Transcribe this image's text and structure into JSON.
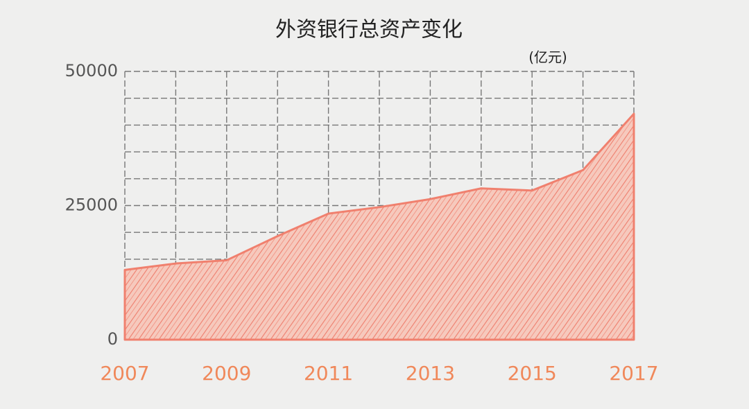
{
  "chart_data": {
    "type": "area",
    "title": "外资银行总资产变化",
    "unit": "(亿元)",
    "x": [
      2007,
      2008,
      2009,
      2010,
      2011,
      2012,
      2013,
      2014,
      2015,
      2016,
      2017
    ],
    "values": [
      13000,
      14200,
      14800,
      19300,
      23500,
      24700,
      26200,
      28200,
      27800,
      31600,
      42100
    ],
    "color": "#f0806e",
    "xlim": [
      2007,
      2017
    ],
    "xticks": [
      2007,
      2009,
      2011,
      2013,
      2015,
      2017
    ],
    "ylim": [
      0,
      50000
    ],
    "yticks": [
      0,
      25000,
      50000
    ],
    "ygrid": [
      0,
      5000,
      10000,
      15000,
      20000,
      25000,
      30000,
      35000,
      40000,
      45000,
      50000
    ],
    "xgrid": [
      2007,
      2008,
      2009,
      2010,
      2011,
      2012,
      2013,
      2014,
      2015,
      2016,
      2017
    ]
  }
}
